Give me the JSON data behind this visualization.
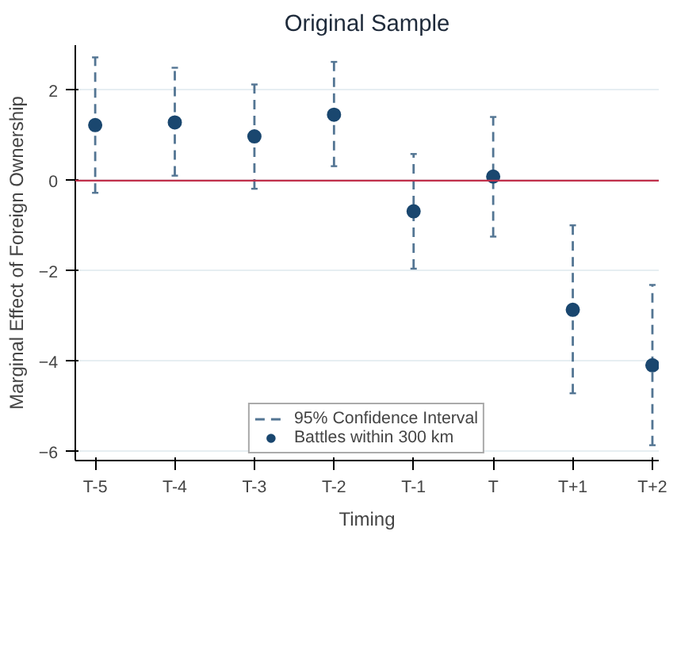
{
  "chart_data": {
    "type": "scatter",
    "title": "Original Sample",
    "xlabel": "Timing",
    "ylabel": "Marginal Effect of Foreign Ownership",
    "categories": [
      "T-5",
      "T-4",
      "T-3",
      "T-2",
      "T-1",
      "T",
      "T+1",
      "T+2"
    ],
    "series": [
      {
        "name": "Battles within 300 km",
        "color": "#1a476f",
        "values": [
          1.23,
          1.29,
          0.98,
          1.46,
          -0.68,
          0.09,
          -2.86,
          -4.09
        ],
        "errors": [
          [
            -0.27,
            2.73
          ],
          [
            0.11,
            2.5
          ],
          [
            -0.18,
            2.13
          ],
          [
            0.32,
            2.63
          ],
          [
            -1.95,
            0.59
          ],
          [
            -1.24,
            1.41
          ],
          [
            -4.71,
            -0.99
          ],
          [
            -5.86,
            -2.31
          ]
        ]
      }
    ],
    "annotations": [
      "95% Confidence Interval"
    ],
    "marker": "circle",
    "line_style": "dashed",
    "ylim": [
      -6.2,
      3
    ],
    "yticks": [
      -6,
      -4,
      -2,
      0,
      2
    ],
    "ref_lines": [
      {
        "axis": "y",
        "value": 0,
        "color": "#c1304b"
      }
    ],
    "grid": "y",
    "legend": "bottom"
  }
}
